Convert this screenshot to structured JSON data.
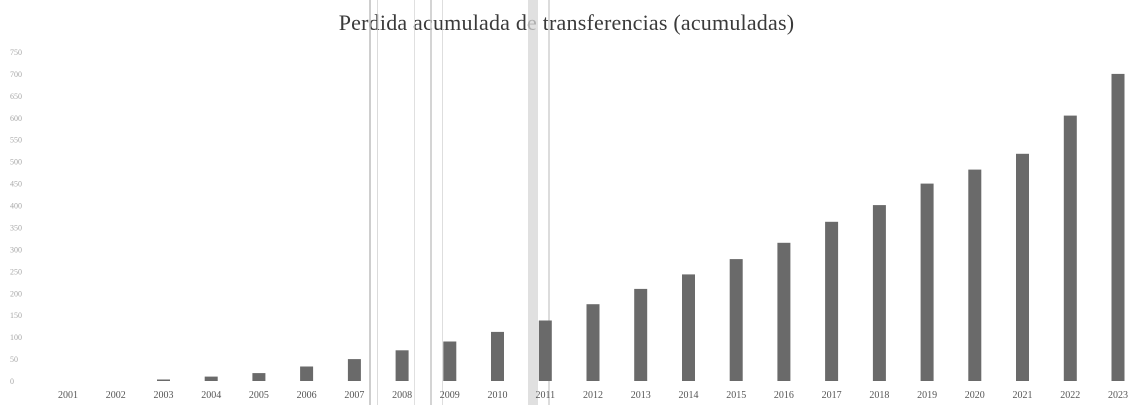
{
  "chart_data": {
    "type": "bar",
    "title": "Perdida acumulada de transferencias (acumuladas)",
    "xlabel": "",
    "ylabel": "",
    "categories": [
      "2001",
      "2002",
      "2003",
      "2004",
      "2005",
      "2006",
      "2007",
      "2008",
      "2009",
      "2010",
      "2011",
      "2012",
      "2013",
      "2014",
      "2015",
      "2016",
      "2017",
      "2018",
      "2019",
      "2020",
      "2021",
      "2022",
      "2023"
    ],
    "values": [
      0,
      0,
      2,
      10,
      18,
      33,
      50,
      70,
      90,
      112,
      138,
      175,
      210,
      243,
      278,
      315,
      363,
      401,
      450,
      482,
      518,
      605,
      700
    ],
    "ylim": [
      0,
      750
    ],
    "yticks": [
      0,
      50,
      100,
      150,
      200,
      250,
      300,
      350,
      400,
      450,
      500,
      550,
      600,
      650,
      700,
      750
    ],
    "bar_color": "#6a6a6a",
    "legend": false,
    "grid": false
  }
}
